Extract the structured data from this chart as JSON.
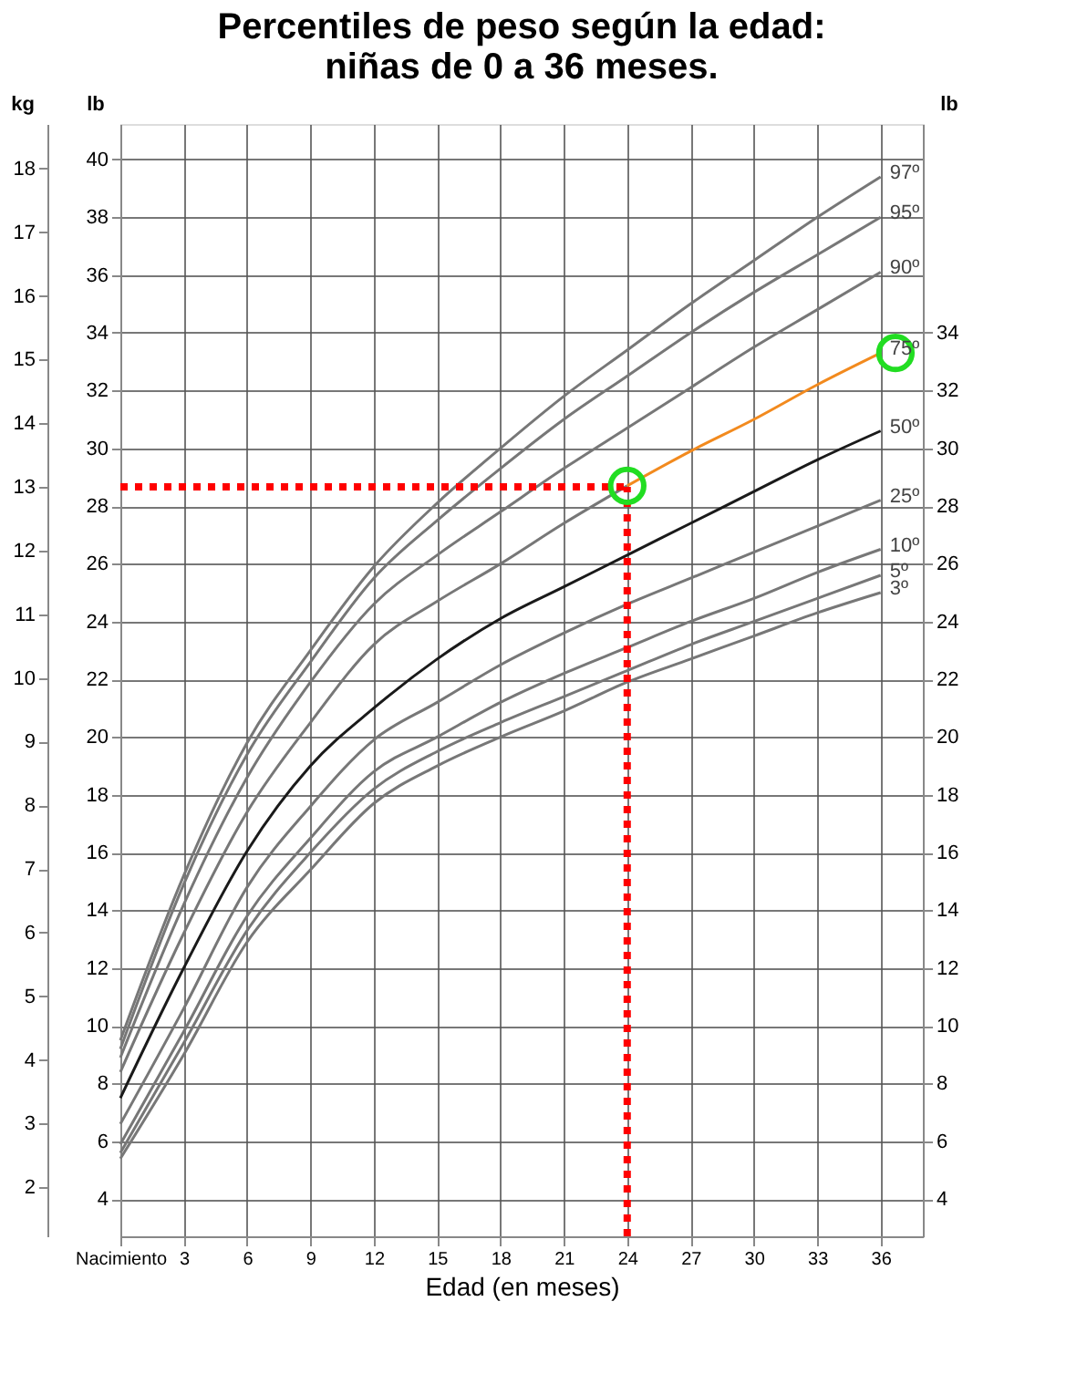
{
  "chart_data": {
    "type": "line",
    "title": "Percentiles de peso según la edad:\nniñas de 0 a 36 meses.",
    "xlabel": "Edad (en meses)",
    "ylabel": "lb",
    "y2label": "lb",
    "y3label": "kg",
    "x": [
      0,
      3,
      6,
      9,
      12,
      15,
      18,
      21,
      24,
      27,
      30,
      33,
      36
    ],
    "xlim": [
      0,
      38
    ],
    "xticks": [
      {
        "value": 0,
        "label": "Nacimiento"
      },
      3,
      6,
      9,
      12,
      15,
      18,
      21,
      24,
      27,
      30,
      33,
      36
    ],
    "ylim": [
      2.71,
      41.23
    ],
    "yticks": [
      4,
      6,
      8,
      10,
      12,
      14,
      16,
      18,
      20,
      22,
      24,
      26,
      28,
      30,
      32,
      34,
      36,
      38,
      40
    ],
    "y2lim": [
      2.71,
      41.23
    ],
    "y2ticks": [
      4,
      6,
      8,
      10,
      12,
      14,
      16,
      18,
      20,
      22,
      24,
      26,
      28,
      30,
      32,
      34
    ],
    "y3lim": [
      1.23,
      18.7
    ],
    "y3ticks": [
      2,
      3,
      4,
      5,
      6,
      7,
      8,
      9,
      10,
      11,
      12,
      13,
      14,
      15,
      16,
      17,
      18
    ],
    "grid": true,
    "series": [
      {
        "name": "97º",
        "color": "#777777",
        "values": [
          9.5,
          15.2,
          19.8,
          23.0,
          25.9,
          28.1,
          30.0,
          31.8,
          33.4,
          35.0,
          36.5,
          38.0,
          39.4
        ]
      },
      {
        "name": "95º",
        "color": "#777777",
        "values": [
          9.2,
          14.9,
          19.4,
          22.6,
          25.5,
          27.5,
          29.3,
          31.0,
          32.5,
          34.0,
          35.4,
          36.7,
          38.0
        ]
      },
      {
        "name": "90º",
        "color": "#777777",
        "values": [
          8.9,
          14.2,
          18.6,
          21.9,
          24.6,
          26.3,
          27.8,
          29.3,
          30.7,
          32.1,
          33.5,
          34.8,
          36.1
        ]
      },
      {
        "color": "#777777",
        "x": [
          0,
          3,
          6,
          9,
          12,
          15,
          18,
          21,
          24
        ],
        "values": [
          8.4,
          13.2,
          17.4,
          20.5,
          23.2,
          24.7,
          26.0,
          27.4,
          28.7
        ]
      },
      {
        "name": "75º",
        "color": "#f28a1e",
        "x": [
          24,
          27,
          30,
          33,
          36
        ],
        "values": [
          28.7,
          29.9,
          31.0,
          32.2,
          33.3
        ]
      },
      {
        "name": "50º",
        "color": "#1a1a1a",
        "values": [
          7.5,
          12.0,
          16.05,
          19.0,
          21.0,
          22.7,
          24.1,
          25.2,
          26.3,
          27.4,
          28.5,
          29.6,
          30.6
        ]
      },
      {
        "name": "25º",
        "color": "#777777",
        "values": [
          6.6,
          10.6,
          14.8,
          17.6,
          19.9,
          21.2,
          22.5,
          23.6,
          24.6,
          25.5,
          26.4,
          27.3,
          28.2
        ]
      },
      {
        "name": "10º",
        "color": "#777777",
        "values": [
          5.9,
          9.8,
          13.8,
          16.5,
          18.8,
          20.0,
          21.2,
          22.2,
          23.1,
          24.0,
          24.8,
          25.7,
          26.5
        ]
      },
      {
        "name": "5º",
        "color": "#777777",
        "values": [
          5.6,
          9.4,
          13.3,
          16.0,
          18.2,
          19.5,
          20.5,
          21.4,
          22.3,
          23.2,
          24.0,
          24.8,
          25.6
        ]
      },
      {
        "name": "3º",
        "color": "#777777",
        "values": [
          5.4,
          9.0,
          12.9,
          15.4,
          17.7,
          19.0,
          20.0,
          20.9,
          21.9,
          22.7,
          23.5,
          24.3,
          25.0
        ]
      },
      {
        "color": "#ff0000",
        "line_style": "dotted",
        "x": [
          0,
          24
        ],
        "values": [
          28.66,
          28.66
        ]
      },
      {
        "color": "#ff0000",
        "line_style": "dotted",
        "x": [
          24,
          24
        ],
        "values": [
          2.71,
          28.66
        ]
      },
      {
        "type": "scatter",
        "marker": "circle",
        "color": "#22dd22",
        "x": [
          24,
          36.7
        ],
        "values": [
          28.7,
          33.3
        ]
      }
    ]
  }
}
